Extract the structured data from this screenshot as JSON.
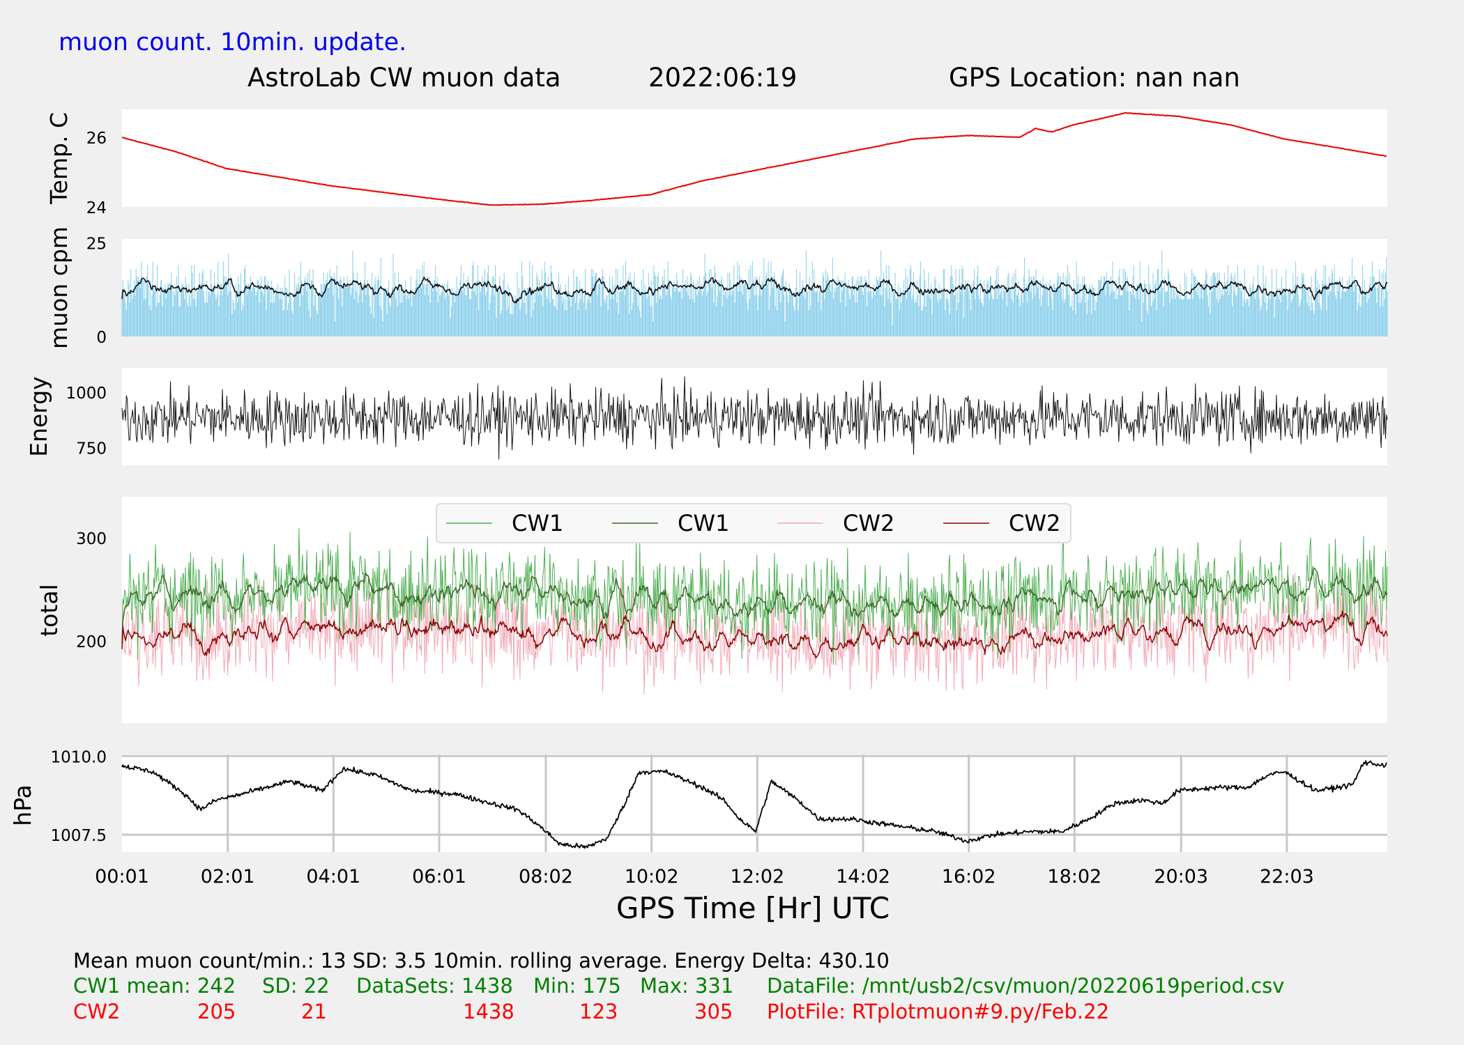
{
  "header": {
    "update_note": "muon count.  10min. update.",
    "title_left": "AstroLab CW muon data",
    "title_date": "2022:06:19",
    "title_location": "GPS Location: nan   nan"
  },
  "colors": {
    "background": "#f0f0f0",
    "temp": "#e8100c",
    "cpm_bars": "#87ceeb",
    "cpm_avg": "#111111",
    "energy": "#111111",
    "cw1_raw": "#4caf50",
    "cw1_avg": "#3d6b2a",
    "cw2_raw": "#f4a6b4",
    "cw2_avg": "#8b0000",
    "pressure": "#000000",
    "grid": "#c8c8c8",
    "info_black": "#000000",
    "info_green": "#008000",
    "info_red": "#ff0000",
    "note_blue": "#0000ee"
  },
  "chart_data": [
    {
      "id": "temperature",
      "type": "line",
      "ylabel": "Temp. C",
      "ylim": [
        24,
        26.8
      ],
      "yticks": [
        24,
        26
      ],
      "ytick_labels": [
        "24",
        "26"
      ],
      "anchors_h": [
        0,
        1,
        2,
        4,
        6,
        7,
        8,
        9,
        10,
        11,
        12,
        13,
        14,
        15,
        16,
        17,
        17.3,
        17.6,
        18,
        19,
        20,
        21,
        22,
        23,
        23.95
      ],
      "anchors_v": [
        26.0,
        25.6,
        25.1,
        24.6,
        24.22,
        24.05,
        24.08,
        24.2,
        24.35,
        24.75,
        25.05,
        25.35,
        25.65,
        25.95,
        26.05,
        26.0,
        26.25,
        26.15,
        26.35,
        26.7,
        26.6,
        26.35,
        25.95,
        25.7,
        25.45
      ],
      "grid": false
    },
    {
      "id": "muon_cpm",
      "type": "bar",
      "ylabel": "muon cpm",
      "ylim": [
        0,
        26
      ],
      "yticks": [
        0,
        25
      ],
      "ytick_labels": [
        "0",
        "25"
      ],
      "mean": 13,
      "sd": 3.5,
      "rolling_window_min": 10,
      "grid": false
    },
    {
      "id": "energy",
      "type": "line",
      "ylabel": "Energy",
      "ylim": [
        670,
        1110
      ],
      "yticks": [
        750,
        1000
      ],
      "ytick_labels": [
        "750",
        "1000"
      ],
      "center": 885,
      "energy_delta": "430.10",
      "grid": false
    },
    {
      "id": "total",
      "type": "line",
      "ylabel": "total",
      "ylim": [
        120,
        340
      ],
      "yticks": [
        200,
        300
      ],
      "ytick_labels": [
        "200",
        "300"
      ],
      "legend": {
        "placement": "top-center",
        "entries": [
          {
            "label": "CW1",
            "color_key": "cw1_raw"
          },
          {
            "label": "CW1",
            "color_key": "cw1_avg"
          },
          {
            "label": "CW2",
            "color_key": "cw2_raw"
          },
          {
            "label": "CW2",
            "color_key": "cw2_avg"
          }
        ]
      },
      "series": [
        {
          "id": "cw1_raw",
          "mean": 242,
          "sd": 22,
          "min": 175,
          "max": 331
        },
        {
          "id": "cw1_avg",
          "mean": 242
        },
        {
          "id": "cw2_raw",
          "mean": 205,
          "sd": 21,
          "min": 123,
          "max": 305
        },
        {
          "id": "cw2_avg",
          "mean": 205
        }
      ],
      "grid": false
    },
    {
      "id": "pressure",
      "type": "line",
      "ylabel": "hPa",
      "ylim": [
        1006.95,
        1010.05
      ],
      "yticks": [
        1007.5,
        1010.0
      ],
      "ytick_labels": [
        "1007.5",
        "1010.0"
      ],
      "anchors_h": [
        0,
        0.6,
        1.2,
        1.5,
        1.8,
        2.3,
        3.2,
        3.8,
        4.2,
        4.8,
        5.5,
        6.3,
        7.0,
        7.5,
        7.9,
        8.3,
        8.8,
        9.2,
        9.5,
        9.8,
        10.3,
        11.0,
        11.4,
        11.7,
        12.0,
        12.3,
        12.8,
        13.2,
        13.8,
        14.6,
        15.4,
        16.0,
        16.5,
        17.2,
        17.8,
        18.3,
        18.8,
        19.3,
        19.7,
        20.0,
        20.7,
        21.3,
        21.7,
        22.0,
        22.6,
        23.0,
        23.3,
        23.5,
        23.95
      ],
      "anchors_v": [
        1009.7,
        1009.5,
        1008.8,
        1008.3,
        1008.6,
        1008.8,
        1009.2,
        1008.9,
        1009.6,
        1009.4,
        1008.9,
        1008.8,
        1008.5,
        1008.3,
        1007.8,
        1007.2,
        1007.1,
        1007.4,
        1008.4,
        1009.5,
        1009.5,
        1009.0,
        1008.6,
        1008.0,
        1007.6,
        1009.2,
        1008.6,
        1008.0,
        1008.0,
        1007.8,
        1007.6,
        1007.3,
        1007.5,
        1007.6,
        1007.6,
        1008.0,
        1008.5,
        1008.6,
        1008.5,
        1008.9,
        1009.0,
        1009.0,
        1009.4,
        1009.5,
        1008.9,
        1009.0,
        1009.1,
        1009.8,
        1009.7
      ],
      "grid": true
    }
  ],
  "x_axis": {
    "label": "GPS Time  [Hr] UTC",
    "start_hours": 0.0167,
    "end_hours": 23.95,
    "ticks_hours": [
      0.0167,
      2.0167,
      4.0167,
      6.0167,
      8.0333,
      10.0333,
      12.0333,
      14.0333,
      16.0333,
      18.0333,
      20.05,
      22.05
    ],
    "tick_labels": [
      "00:01",
      "02:01",
      "04:01",
      "06:01",
      "08:02",
      "10:02",
      "12:02",
      "14:02",
      "16:02",
      "18:02",
      "20:03",
      "22:03"
    ]
  },
  "info": {
    "line1": "Mean muon count/min.: 13  SD: 3.5   10min. rolling average.    Energy Delta:  430.10",
    "cw1": {
      "name": "CW1 mean: 242",
      "sd": "SD: 22",
      "datasets": "DataSets: 1438",
      "min": "Min: 175",
      "max": "Max: 331",
      "file": "DataFile: /mnt/usb2/csv/muon/20220619period.csv"
    },
    "cw2": {
      "name": "CW2",
      "mean": "205",
      "sd": "21",
      "datasets": "1438",
      "min": "123",
      "max": "305",
      "file": "PlotFile: RTplotmuon#9.py/Feb.22"
    }
  }
}
